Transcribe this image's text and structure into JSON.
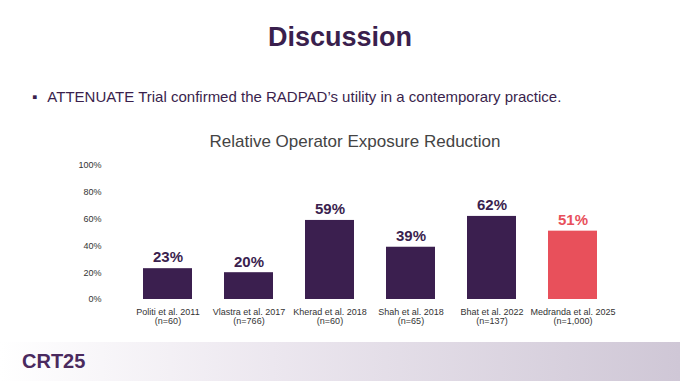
{
  "slide": {
    "heading": "Discussion",
    "bullet": "ATTENUATE Trial confirmed the RADPAD’s utility in a contemporary practice.",
    "footer": "CRT25"
  },
  "chart_data": {
    "type": "bar",
    "title": "Relative Operator Exposure Reduction",
    "categories": [
      "Politi et al. 2011\n(n=60)",
      "Vlastra et al. 2017\n(n=766)",
      "Kherad et al. 2018\n(n=60)",
      "Shah et al. 2018\n(n=65)",
      "Bhat et al. 2022\n(n=137)",
      "Medranda et al. 2025\n(n=1,000)"
    ],
    "values": [
      23,
      20,
      59,
      39,
      62,
      51
    ],
    "value_labels": [
      "23%",
      "20%",
      "59%",
      "39%",
      "62%",
      "51%"
    ],
    "colors": [
      "#3b1f4f",
      "#3b1f4f",
      "#3b1f4f",
      "#3b1f4f",
      "#3b1f4f",
      "#e8505b"
    ],
    "ylim": [
      0,
      100
    ],
    "yticks": [
      {
        "value": 0,
        "label": "0%"
      },
      {
        "value": 20,
        "label": "20%"
      },
      {
        "value": 40,
        "label": "40%"
      },
      {
        "value": 60,
        "label": "60%"
      },
      {
        "value": 80,
        "label": "80%"
      },
      {
        "value": 100,
        "label": "100%"
      }
    ],
    "data_labels": true,
    "grid": false
  }
}
